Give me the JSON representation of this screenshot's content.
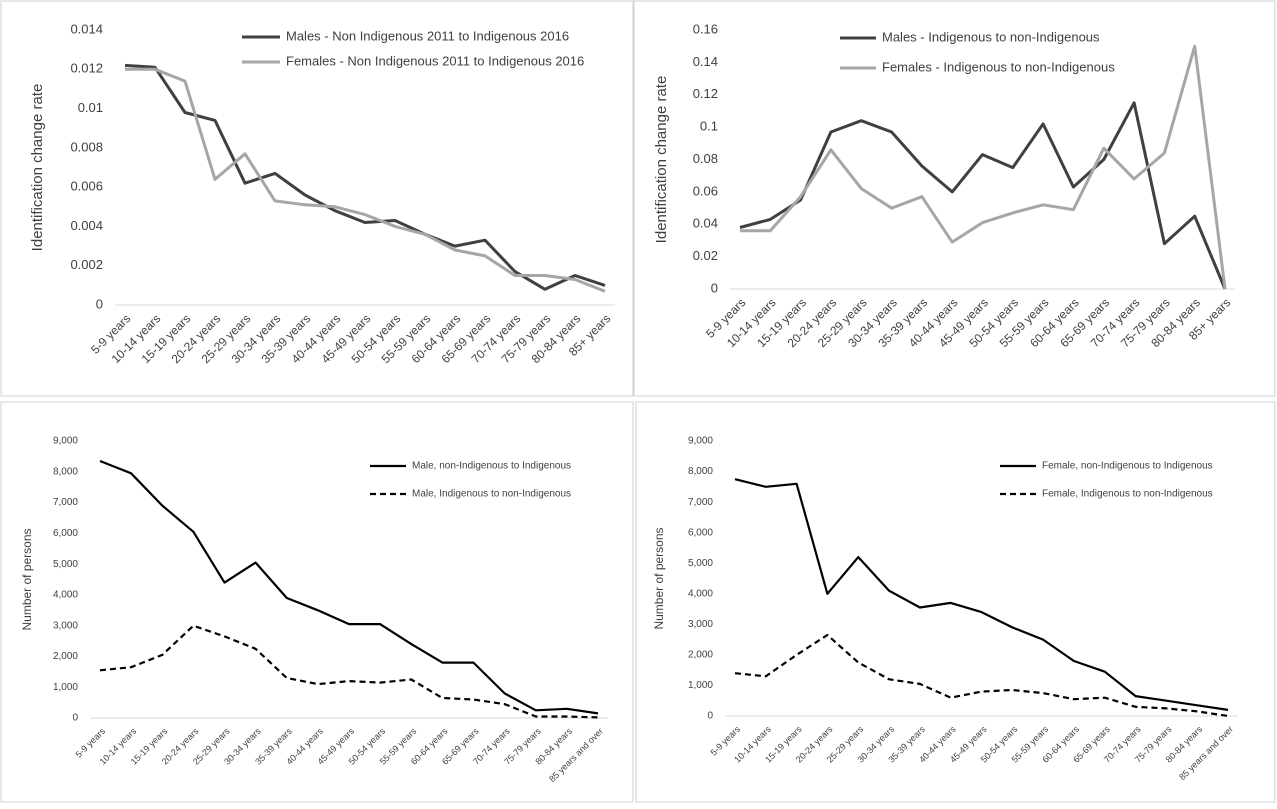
{
  "chart_data": [
    {
      "type": "line",
      "y_label": "Identification change rate",
      "ylim": [
        0,
        0.014
      ],
      "yticks": [
        0,
        0.002,
        0.004,
        0.006,
        0.008,
        0.01,
        0.012,
        0.014
      ],
      "legend": "top-right",
      "categories": [
        "5-9 years",
        "10-14 years",
        "15-19 years",
        "20-24 years",
        "25-29 years",
        "30-34 years",
        "35-39 years",
        "40-44 years",
        "45-49 years",
        "50-54 years",
        "55-59 years",
        "60-64 years",
        "65-69 years",
        "70-74 years",
        "75-79 years",
        "80-84 years",
        "85+ years"
      ],
      "series": [
        {
          "name": "Males - Non Indigenous 2011 to Indigenous 2016",
          "color": "#404040",
          "line_style": "solid",
          "values": [
            0.0122,
            0.0121,
            0.0098,
            0.0094,
            0.0062,
            0.0067,
            0.0056,
            0.0048,
            0.0042,
            0.0043,
            0.0036,
            0.003,
            0.0033,
            0.0017,
            0.0008,
            0.0015,
            0.001
          ]
        },
        {
          "name": "Females - Non Indigenous 2011 to Indigenous 2016",
          "color": "#a6a6a6",
          "line_style": "solid",
          "values": [
            0.012,
            0.012,
            0.0114,
            0.0064,
            0.0077,
            0.0053,
            0.0051,
            0.005,
            0.0046,
            0.004,
            0.0036,
            0.0028,
            0.0025,
            0.0015,
            0.0015,
            0.0013,
            0.0007
          ]
        }
      ]
    },
    {
      "type": "line",
      "y_label": "Identification change rate",
      "ylim": [
        0,
        0.16
      ],
      "yticks": [
        0,
        0.02,
        0.04,
        0.06,
        0.08,
        0.1,
        0.12,
        0.14,
        0.16
      ],
      "legend": "top-right",
      "categories": [
        "5-9 years",
        "10-14 years",
        "15-19 years",
        "20-24 years",
        "25-29 years",
        "30-34 years",
        "35-39 years",
        "40-44 years",
        "45-49 years",
        "50-54 years",
        "55-59 years",
        "60-64 years",
        "65-69 years",
        "70-74 years",
        "75-79 years",
        "80-84 years",
        "85+ years"
      ],
      "series": [
        {
          "name": "Males - Indigenous to non-Indigenous",
          "color": "#404040",
          "line_style": "solid",
          "values": [
            0.038,
            0.043,
            0.055,
            0.097,
            0.104,
            0.097,
            0.076,
            0.06,
            0.083,
            0.075,
            0.102,
            0.063,
            0.08,
            0.115,
            0.028,
            0.045,
            0
          ]
        },
        {
          "name": "Females - Indigenous to non-Indigenous",
          "color": "#a6a6a6",
          "line_style": "solid",
          "values": [
            0.036,
            0.036,
            0.057,
            0.086,
            0.062,
            0.05,
            0.057,
            0.029,
            0.041,
            0.047,
            0.052,
            0.049,
            0.087,
            0.068,
            0.084,
            0.15,
            0
          ]
        }
      ]
    },
    {
      "type": "line",
      "y_label": "Number of persons",
      "ylim": [
        0,
        9000
      ],
      "yticks": [
        0,
        {
          "value": 1000,
          "label": "1,000"
        },
        {
          "value": 2000,
          "label": "2,000"
        },
        {
          "value": 3000,
          "label": "3,000"
        },
        {
          "value": 4000,
          "label": "4,000"
        },
        {
          "value": 5000,
          "label": "5,000"
        },
        {
          "value": 6000,
          "label": "6,000"
        },
        {
          "value": 7000,
          "label": "7,000"
        },
        {
          "value": 8000,
          "label": "8,000"
        },
        {
          "value": 9000,
          "label": "9,000"
        }
      ],
      "legend": "top-right",
      "categories": [
        "5-9 years",
        "10-14 years",
        "15-19 years",
        "20-24 years",
        "25-29 years",
        "30-34 years",
        "35-39 years",
        "40-44 years",
        "45-49 years",
        "50-54 years",
        "55-59 years",
        "60-64 years",
        "65-69 years",
        "70-74 years",
        "75-79 years",
        "80-84 years",
        "85 years and over"
      ],
      "series": [
        {
          "name": "Male, non-Indigenous to Indigenous",
          "color": "#000000",
          "line_style": "solid",
          "values": [
            8350,
            7950,
            6900,
            6050,
            4400,
            5050,
            3900,
            3500,
            3050,
            3050,
            2400,
            1800,
            1800,
            800,
            250,
            300,
            150
          ]
        },
        {
          "name": "Male, Indigenous to non-Indigenous",
          "color": "#000000",
          "line_style": "dashed",
          "values": [
            1550,
            1650,
            2050,
            3000,
            2650,
            2250,
            1300,
            1100,
            1200,
            1150,
            1250,
            650,
            600,
            450,
            50,
            50,
            20
          ]
        }
      ]
    },
    {
      "type": "line",
      "y_label": "Number of persons",
      "ylim": [
        0,
        9000
      ],
      "yticks": [
        0,
        {
          "value": 1000,
          "label": "1,000"
        },
        {
          "value": 2000,
          "label": "2,000"
        },
        {
          "value": 3000,
          "label": "3,000"
        },
        {
          "value": 4000,
          "label": "4,000"
        },
        {
          "value": 5000,
          "label": "5,000"
        },
        {
          "value": 6000,
          "label": "6,000"
        },
        {
          "value": 7000,
          "label": "7,000"
        },
        {
          "value": 8000,
          "label": "8,000"
        },
        {
          "value": 9000,
          "label": "9,000"
        }
      ],
      "legend": "top-right",
      "categories": [
        "5-9 years",
        "10-14 years",
        "15-19 years",
        "20-24 years",
        "25-29 years",
        "30-34 years",
        "35-39 years",
        "40-44 years",
        "45-49 years",
        "50-54 years",
        "55-59 years",
        "60-64 years",
        "65-69 years",
        "70-74 years",
        "75-79 years",
        "80-84 years",
        "85 years and over"
      ],
      "series": [
        {
          "name": "Female, non-Indigenous to Indigenous",
          "color": "#000000",
          "line_style": "solid",
          "values": [
            7750,
            7500,
            7600,
            4000,
            5200,
            4100,
            3550,
            3700,
            3400,
            2900,
            2500,
            1800,
            1450,
            650,
            500,
            350,
            200
          ]
        },
        {
          "name": "Female, Indigenous to non-Indigenous",
          "color": "#000000",
          "line_style": "dashed",
          "values": [
            1400,
            1300,
            2000,
            2650,
            1750,
            1200,
            1050,
            600,
            800,
            850,
            750,
            550,
            600,
            300,
            250,
            150,
            0
          ]
        }
      ]
    }
  ]
}
